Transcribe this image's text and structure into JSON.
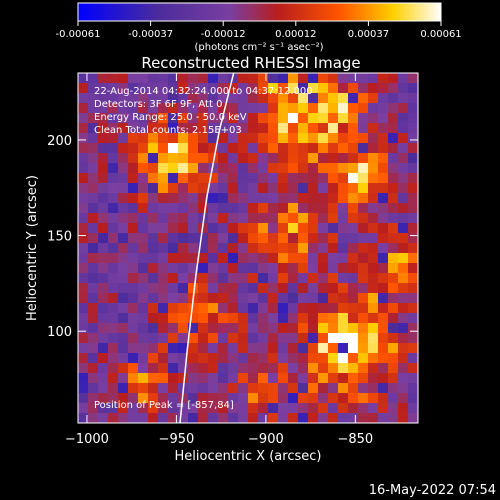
{
  "colorbar": {
    "ticks": [
      "-0.00061",
      "-0.00037",
      "-0.00012",
      "0.00012",
      "0.00037",
      "0.00061"
    ],
    "units_label": "(photons cm⁻² s⁻¹ asec⁻²)",
    "colors": [
      "#0000ff",
      "#4b2c9c",
      "#7a3fa0",
      "#b81e1e",
      "#ff5500",
      "#ffd000",
      "#ffffff"
    ]
  },
  "chart_data": {
    "type": "heatmap",
    "title": "Reconstructed RHESSI Image",
    "xlabel": "Heliocentric X (arcsec)",
    "ylabel": "Heliocentric Y (arcsec)",
    "xlim": [
      -1005,
      -815
    ],
    "ylim": [
      52,
      235
    ],
    "xticks": [
      {
        "value": -1000,
        "label": "−1000"
      },
      {
        "value": -950,
        "label": "−950"
      },
      {
        "value": -900,
        "label": "−900"
      },
      {
        "value": -850,
        "label": "−850"
      }
    ],
    "yticks": [
      {
        "value": 100,
        "label": "100"
      },
      {
        "value": 150,
        "label": "150"
      },
      {
        "value": 200,
        "label": "200"
      }
    ],
    "annotations": [
      "22-Aug-2014 04:32:24.000 to 04:37:12.000",
      "Detectors: 3F 6F 9F, Att 0",
      "Energy Range: 25.0 - 50.0 keV",
      "Clean     Total counts: 2.15E+03"
    ],
    "peak_label": "Position of Peak = [-857,84]",
    "peak": [
      -857,
      84
    ],
    "limb": [
      [
        -948,
        52
      ],
      [
        -944,
        90
      ],
      [
        -939,
        130
      ],
      [
        -933,
        170
      ],
      [
        -926,
        205
      ],
      [
        -918,
        235
      ]
    ]
  },
  "footer_timestamp": "16-May-2022 07:54"
}
